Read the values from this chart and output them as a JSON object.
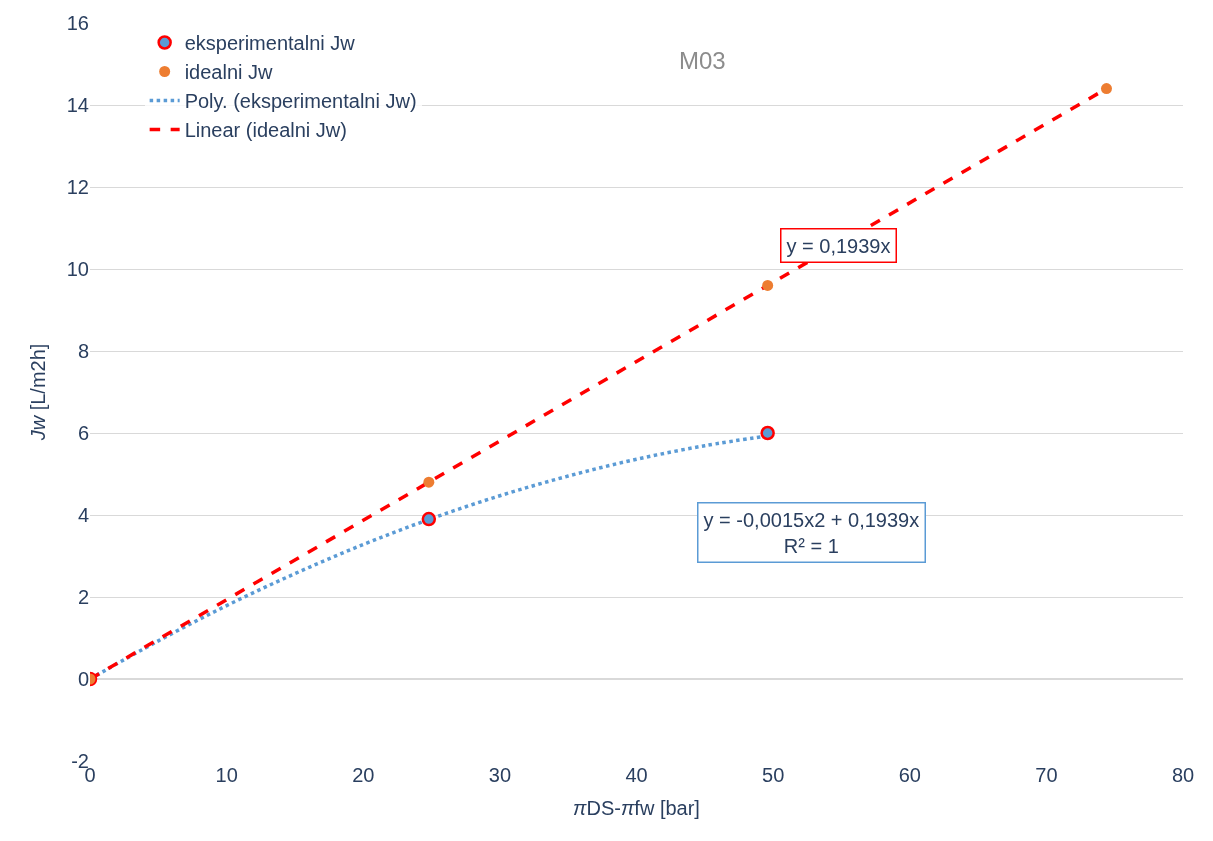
{
  "chart_data": {
    "type": "scatter",
    "title": "M03",
    "xlabel": "πDS-πfw [bar]",
    "ylabel": "Jw [L/m2h]",
    "xlim": [
      0,
      80
    ],
    "xticks": [
      0,
      10,
      20,
      30,
      40,
      50,
      60,
      70,
      80
    ],
    "ylim": [
      -2,
      16
    ],
    "yticks": [
      -2,
      0,
      2,
      4,
      6,
      8,
      10,
      12,
      14,
      16
    ],
    "grid": "y",
    "legend": "top left",
    "series": [
      {
        "name": "eksperimentalni Jw",
        "marker": "circle",
        "color": "#5b9bd5",
        "x": [
          0,
          24.8,
          49.6
        ],
        "values": [
          0,
          3.9,
          6.0
        ]
      },
      {
        "name": "idealni Jw",
        "marker": "circle",
        "color": "#ed7d31",
        "x": [
          0,
          24.8,
          49.6,
          74.4
        ],
        "values": [
          0,
          4.8,
          9.6,
          14.4
        ]
      },
      {
        "name": "Poly. (eksperimentalni Jw)",
        "type": "line",
        "marker": "none",
        "line_style": "dotted",
        "color": "#5b9bd5",
        "x": [
          0,
          5,
          10,
          15,
          20,
          24.8,
          30,
          35,
          40,
          45,
          49.6
        ],
        "values": [
          0,
          0.93,
          1.79,
          2.57,
          3.28,
          3.89,
          4.47,
          4.95,
          5.36,
          5.69,
          5.93
        ]
      },
      {
        "name": "Linear (idealni Jw)",
        "type": "line",
        "marker": "none",
        "line_style": "dashed",
        "color": "#ff0000",
        "x": [
          0,
          74.4
        ],
        "values": [
          0,
          14.4
        ]
      }
    ],
    "annotations": [
      "y = 0,1939x",
      "y = -0,0015x2 + 0,1939x\nR² = 1"
    ]
  }
}
